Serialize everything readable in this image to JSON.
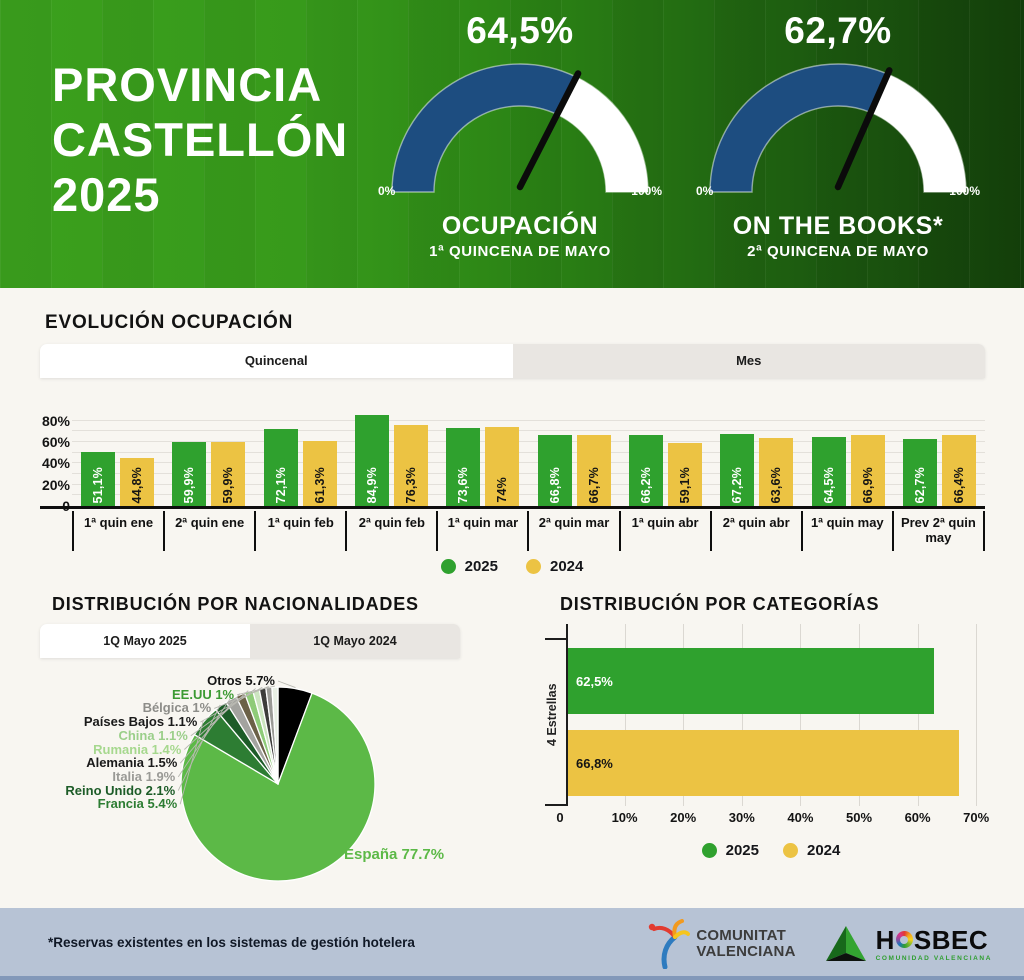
{
  "header": {
    "title_lines": [
      "PROVINCIA",
      "CASTELLÓN",
      "2025"
    ]
  },
  "chart_data": [
    {
      "type": "gauge",
      "value": 64.5,
      "value_label": "64,5%",
      "min_label": "0%",
      "max_label": "100%",
      "title": "OCUPACIÓN",
      "subtitle": "1ª QUINCENA DE MAYO",
      "fill_color": "#1d4d80",
      "track_color": "#ffffff",
      "needle_color": "#0b0b0b"
    },
    {
      "type": "gauge",
      "value": 62.7,
      "value_label": "62,7%",
      "min_label": "0%",
      "max_label": "100%",
      "title": "ON THE BOOKS*",
      "subtitle": "2ª QUINCENA DE MAYO",
      "fill_color": "#1d4d80",
      "track_color": "#ffffff",
      "needle_color": "#0b0b0b"
    },
    {
      "type": "bar",
      "title": "EVOLUCIÓN OCUPACIÓN",
      "categories": [
        "1ª quin ene",
        "2ª quin ene",
        "1ª quin feb",
        "2ª quin feb",
        "1ª quin mar",
        "2ª quin mar",
        "1ª quin abr",
        "2ª quin abr",
        "1ª quin may",
        "Prev 2ª quin may"
      ],
      "series": [
        {
          "name": "2025",
          "color": "#2fa12e",
          "label_color": "#ffffff",
          "values": [
            51.1,
            59.9,
            72.1,
            84.9,
            73.6,
            66.8,
            66.2,
            67.2,
            64.5,
            62.7
          ],
          "labels": [
            "51,1%",
            "59,9%",
            "72,1%",
            "84,9%",
            "73,6%",
            "66,8%",
            "66,2%",
            "67,2%",
            "64,5%",
            "62,7%"
          ]
        },
        {
          "name": "2024",
          "color": "#ecc343",
          "label_color": "#141414",
          "values": [
            44.8,
            59.9,
            61.3,
            76.3,
            74,
            66.7,
            59.1,
            63.6,
            66.9,
            66.4
          ],
          "labels": [
            "44,8%",
            "59,9%",
            "61,3%",
            "76,3%",
            "74%",
            "66,7%",
            "59,1%",
            "63,6%",
            "66,9%",
            "66,4%"
          ]
        }
      ],
      "y_ticks": [
        {
          "label": "80%",
          "value": 80
        },
        {
          "label": "60%",
          "value": 60
        },
        {
          "label": "40%",
          "value": 40
        },
        {
          "label": "20%",
          "value": 20
        },
        {
          "label": "0",
          "value": 0
        }
      ],
      "ylim": [
        0,
        90
      ],
      "grid": "horizontal, every 10%",
      "legend_position": "bottom"
    },
    {
      "type": "pie",
      "title": "DISTRIBUCIÓN POR NACIONALIDADES",
      "slices": [
        {
          "name": "Otros",
          "value": 5.7,
          "label": "Otros 5.7%",
          "color": "#000000",
          "label_color": "#141414",
          "label_slot": 0
        },
        {
          "name": "España",
          "value": 77.7,
          "label": "España 77.7%",
          "color": "#5cb947",
          "label_color": "#5cb947",
          "label_slot": "right"
        },
        {
          "name": "Francia",
          "value": 5.4,
          "label": "Francia 5.4%",
          "color": "#2d7d33",
          "label_color": "#2d7d33",
          "label_slot": 9
        },
        {
          "name": "Reino Unido",
          "value": 2.1,
          "label": "Reino Unido 2.1%",
          "color": "#1d5c28",
          "label_color": "#1d5c28",
          "label_slot": 8
        },
        {
          "name": "Italia",
          "value": 1.9,
          "label": "Italia 1.9%",
          "color": "#a3a39f",
          "label_color": "#9a9a96",
          "label_slot": 7
        },
        {
          "name": "Alemania",
          "value": 1.5,
          "label": "Alemania 1.5%",
          "color": "#6b6147",
          "label_color": "#1a1a1a",
          "label_slot": 6
        },
        {
          "name": "Rumania",
          "value": 1.4,
          "label": "Rumania 1.4%",
          "color": "#8ecb78",
          "label_color": "#a6d88e",
          "label_slot": 5
        },
        {
          "name": "China",
          "value": 1.1,
          "label": "China 1.1%",
          "color": "#cce5c0",
          "label_color": "#9bcf8a",
          "label_slot": 4
        },
        {
          "name": "Países Bajos",
          "value": 1.1,
          "label": "Países Bajos 1.1%",
          "color": "#3c3c3a",
          "label_color": "#1a1a1a",
          "label_slot": 3
        },
        {
          "name": "Bélgica",
          "value": 1.0,
          "label": "Bélgica 1%",
          "color": "#9a9a96",
          "label_color": "#8d8d89",
          "label_slot": 2
        },
        {
          "name": "EE.UU",
          "value": 1.0,
          "label": "EE.UU 1%",
          "color": "#e8efe4",
          "label_color": "#3c9a33",
          "label_slot": 1
        }
      ]
    },
    {
      "type": "bar_horizontal",
      "title": "DISTRIBUCIÓN POR CATEGORÍAS",
      "categories": [
        "4 Estrellas"
      ],
      "series": [
        {
          "name": "2025",
          "color": "#2fa12e",
          "label_color": "#ffffff",
          "values": [
            62.5
          ],
          "labels": [
            "62,5%"
          ]
        },
        {
          "name": "2024",
          "color": "#ecc343",
          "label_color": "#141414",
          "values": [
            66.8
          ],
          "labels": [
            "66,8%"
          ]
        }
      ],
      "x_ticks": [
        {
          "label": "0",
          "value": 0
        },
        {
          "label": "10%",
          "value": 10
        },
        {
          "label": "20%",
          "value": 20
        },
        {
          "label": "30%",
          "value": 30
        },
        {
          "label": "40%",
          "value": 40
        },
        {
          "label": "50%",
          "value": 50
        },
        {
          "label": "60%",
          "value": 60
        },
        {
          "label": "70%",
          "value": 70
        }
      ],
      "xlim": [
        0,
        72
      ],
      "grid": "vertical, every 10%",
      "legend_position": "bottom"
    }
  ],
  "evolution": {
    "heading": "EVOLUCIÓN OCUPACIÓN",
    "tabs": [
      {
        "label": "Quincenal",
        "active": true
      },
      {
        "label": "Mes",
        "active": false
      }
    ]
  },
  "nationalities": {
    "heading": "DISTRIBUCIÓN POR NACIONALIDADES",
    "tabs": [
      {
        "label": "1Q Mayo 2025",
        "active": true
      },
      {
        "label": "1Q Mayo 2024",
        "active": false
      }
    ]
  },
  "categories": {
    "heading": "DISTRIBUCIÓN POR CATEGORÍAS"
  },
  "legend": {
    "items": [
      {
        "label": "2025",
        "color": "#2fa12e"
      },
      {
        "label": "2024",
        "color": "#ecc343"
      }
    ]
  },
  "footer": {
    "note": "*Reservas existentes en los sistemas de gestión hotelera",
    "logos": {
      "comunitat": {
        "line1": "COMUNITAT",
        "line2": "VALENCIANA"
      },
      "hosbec": {
        "name_left": "H",
        "name_right": "SBEC",
        "tagline": "COMUNIDAD VALENCIANA"
      }
    }
  }
}
